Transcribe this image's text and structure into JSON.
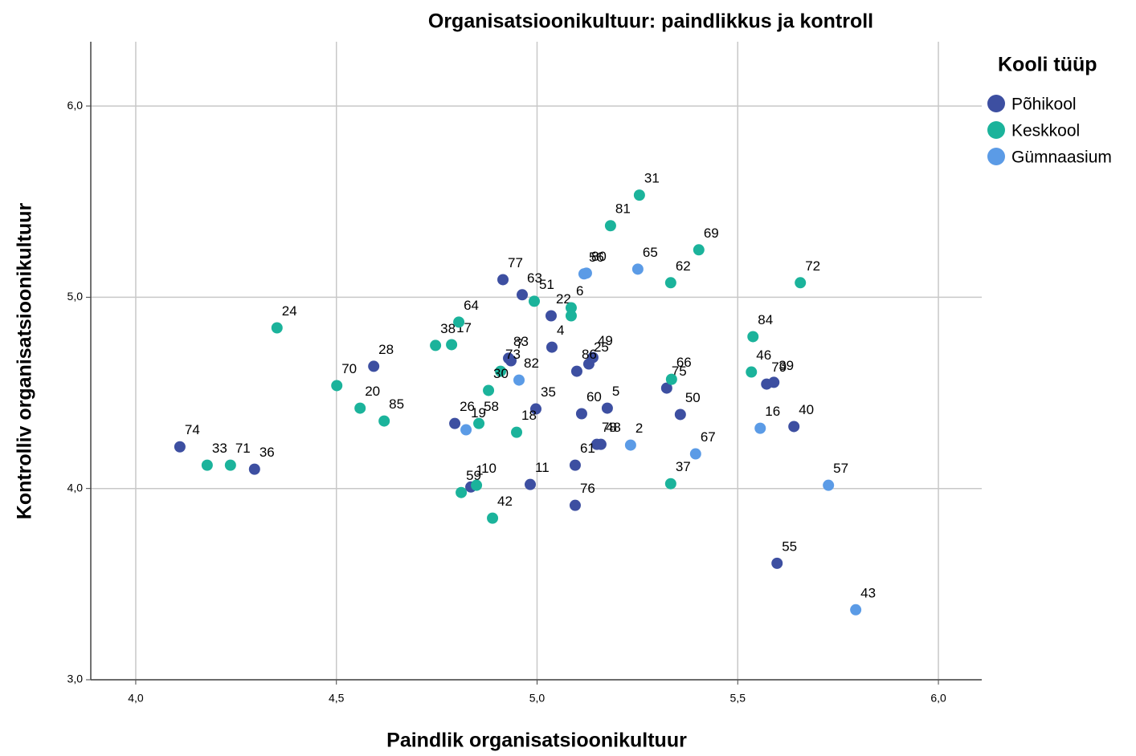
{
  "chart_data": {
    "type": "scatter",
    "title": "Organisatsioonikultuur: paindlikkus ja kontroll",
    "x_label": "Paindlik organisatsioonikultuur",
    "y_label": "Kontrolliv organisatsioonikultuur",
    "legend_title": "Kooli tüüp",
    "legend_position": "right",
    "grid": true,
    "xlim": [
      3.888,
      6.108
    ],
    "ylim": [
      3.0,
      6.336
    ],
    "xticks": [
      {
        "value": 4.0,
        "label": "4,0"
      },
      {
        "value": 4.5,
        "label": "4,5"
      },
      {
        "value": 5.0,
        "label": "5,0"
      },
      {
        "value": 5.5,
        "label": "5,5"
      },
      {
        "value": 6.0,
        "label": "6,0"
      }
    ],
    "yticks": [
      {
        "value": 3.0,
        "label": "3,0"
      },
      {
        "value": 4.0,
        "label": "4,0"
      },
      {
        "value": 5.0,
        "label": "5,0"
      },
      {
        "value": 6.0,
        "label": "6,0"
      }
    ],
    "series": [
      {
        "name": "Põhikool",
        "color": "#3d4fa1",
        "x": [
          4.11,
          4.296,
          4.593,
          4.915,
          4.963,
          5.035,
          5.037,
          4.929,
          4.935,
          5.139,
          5.129,
          5.099,
          5.111,
          5.175,
          4.997,
          4.795,
          5.149,
          5.159,
          5.095,
          4.983,
          5.095,
          4.835,
          5.323,
          5.357,
          5.572,
          5.59,
          5.64,
          5.598
        ],
        "y": [
          4.218,
          4.101,
          4.639,
          5.092,
          5.013,
          4.903,
          4.739,
          4.681,
          4.668,
          4.685,
          4.651,
          4.613,
          4.391,
          4.42,
          4.416,
          4.34,
          4.231,
          4.231,
          4.122,
          4.021,
          3.912,
          4.008,
          4.525,
          4.387,
          4.546,
          4.555,
          4.324,
          3.609
        ],
        "labels": [
          "74",
          "36",
          "28",
          "77",
          "63",
          "22",
          "4",
          "83",
          "7",
          "49",
          "25",
          "86",
          "60",
          "5",
          "35",
          "26",
          "78",
          "48",
          "61",
          "11",
          "76",
          "1",
          "75",
          "50",
          "79",
          "39",
          "40",
          "55"
        ]
      },
      {
        "name": "Keskkool",
        "color": "#1bb39b",
        "x": [
          4.178,
          4.236,
          4.352,
          4.501,
          4.559,
          4.619,
          4.747,
          4.787,
          4.805,
          4.909,
          4.879,
          4.855,
          4.949,
          4.811,
          4.849,
          4.889,
          4.993,
          5.085,
          5.085,
          5.538,
          5.534,
          5.335,
          5.333,
          5.183,
          5.255,
          5.403,
          5.333,
          5.656
        ],
        "y": [
          4.122,
          4.122,
          4.84,
          4.538,
          4.42,
          4.353,
          4.748,
          4.752,
          4.87,
          4.613,
          4.513,
          4.34,
          4.294,
          3.979,
          4.017,
          3.845,
          4.979,
          4.945,
          4.903,
          4.794,
          4.609,
          4.571,
          4.025,
          5.374,
          5.534,
          5.248,
          5.076,
          5.076
        ],
        "labels": [
          "33",
          "71",
          "24",
          "70",
          "20",
          "85",
          "38",
          "17",
          "64",
          "73",
          "30",
          "58",
          "18",
          "59",
          "10",
          "42",
          "51",
          "6",
          null,
          "84",
          "46",
          "66",
          "37",
          "81",
          "31",
          "69",
          "62",
          "72"
        ]
      },
      {
        "name": "Gümnaasium",
        "color": "#5b9be6",
        "x": [
          5.117,
          5.123,
          5.251,
          4.955,
          4.823,
          5.233,
          5.395,
          5.556,
          5.726,
          5.794
        ],
        "y": [
          5.122,
          5.126,
          5.147,
          4.567,
          4.307,
          4.227,
          4.181,
          4.315,
          4.017,
          3.366
        ],
        "labels": [
          "56",
          "80",
          "65",
          "82",
          "19",
          "2",
          "67",
          "16",
          "57",
          "43"
        ]
      }
    ]
  }
}
